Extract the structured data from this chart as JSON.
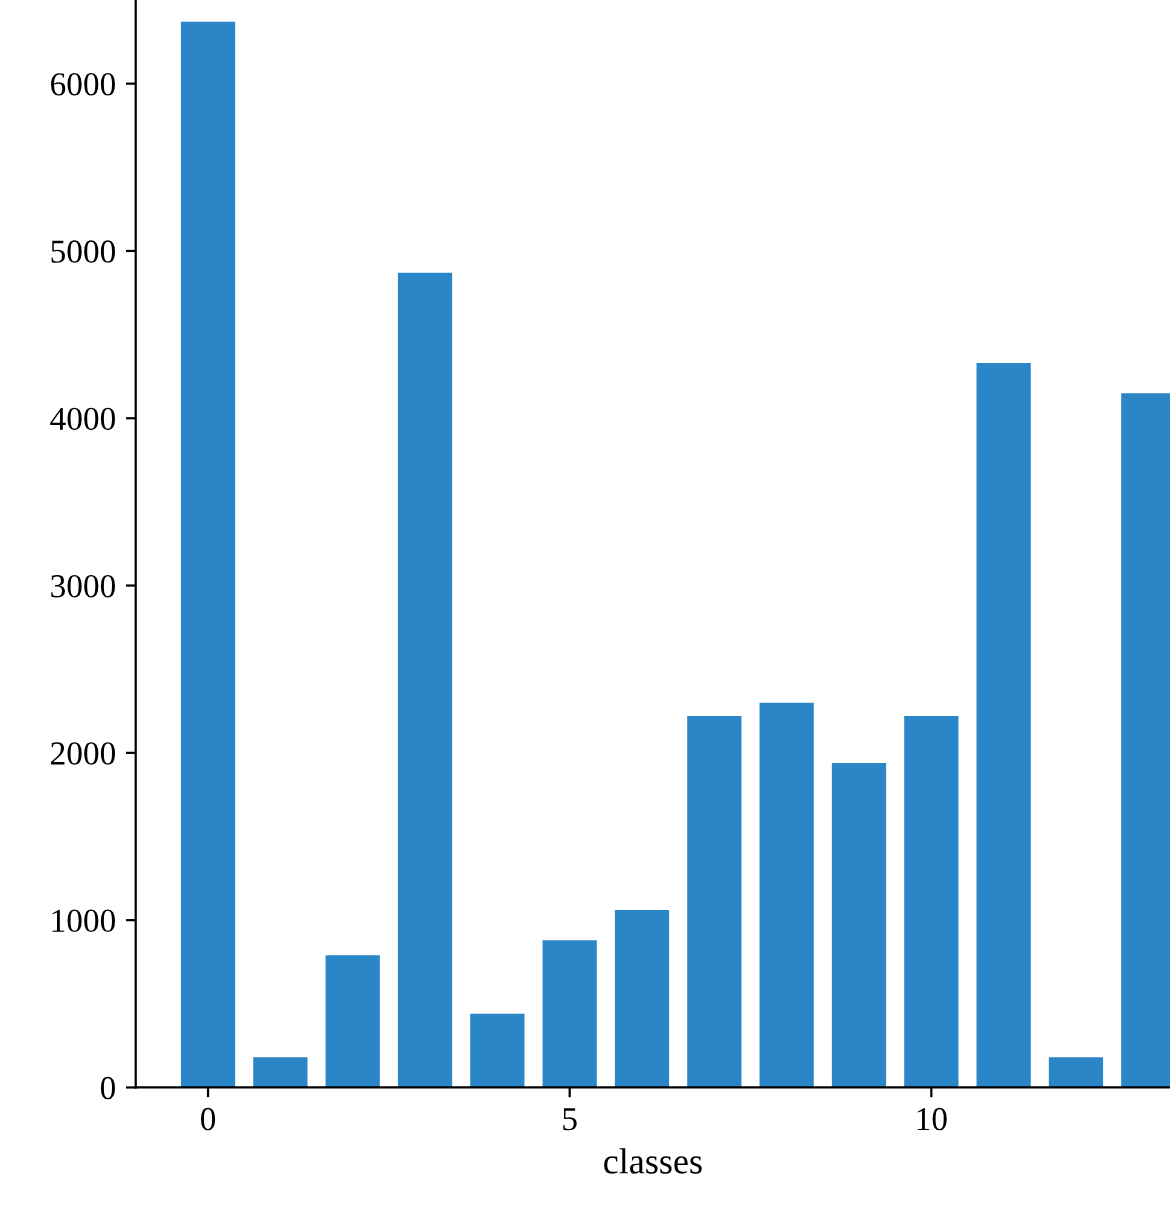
{
  "chart_data": {
    "type": "bar",
    "xlabel": "classes",
    "x": [
      0,
      1,
      2,
      3,
      4,
      5,
      6,
      7,
      8,
      9,
      10,
      11,
      12,
      13
    ],
    "values": [
      6370,
      180,
      790,
      4870,
      440,
      880,
      1060,
      2220,
      2300,
      1940,
      2220,
      4330,
      180,
      4150
    ],
    "color": "#2a86c6",
    "xlim": [
      -1,
      13.3
    ],
    "xticks": [
      0,
      5,
      10
    ],
    "ylim": [
      0,
      6500
    ],
    "yticks": [
      0,
      1000,
      2000,
      3000,
      4000,
      5000,
      6000
    ],
    "grid": false,
    "legend": false
  }
}
